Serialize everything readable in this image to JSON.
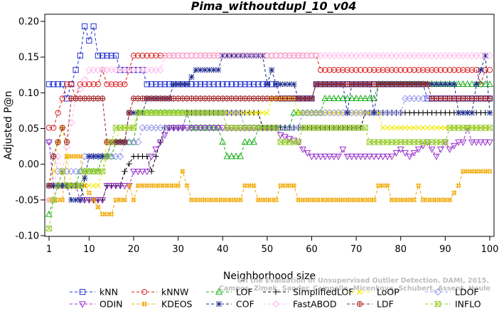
{
  "chart_data": {
    "type": "line",
    "title": "Pima_withoutdupl_10_v04",
    "xlabel": "Neighborhood size",
    "ylabel": "Adjusted P@n",
    "xlim": [
      1,
      100
    ],
    "ylim": [
      -0.1,
      0.2
    ],
    "x_ticks": [
      1,
      10,
      20,
      30,
      40,
      50,
      60,
      70,
      80,
      90,
      100
    ],
    "y_ticks": [
      -0.1,
      -0.05,
      0.0,
      0.05,
      0.1,
      0.15,
      0.2
    ],
    "y_tick_labels": [
      "-0.10",
      "-0.05",
      "0.00",
      "0.05",
      "0.10",
      "0.15",
      "0.20"
    ],
    "grid": false,
    "legend_position": "bottom",
    "watermark": [
      "Campos, Zimek, Sander, Campello, Micenkova, Schubert, Assent, Houle",
      "On the Evaluation of Unsupervised Outlier Detection. DAMI, 2015."
    ],
    "series": [
      {
        "name": "kNN",
        "color": "#2233cc",
        "marker": "square",
        "knots": [
          [
            1,
            0.112
          ],
          [
            4,
            0.112
          ],
          [
            5,
            0.092
          ],
          [
            6,
            0.112
          ],
          [
            7,
            0.132
          ],
          [
            8,
            0.152
          ],
          [
            9,
            0.193
          ],
          [
            10,
            0.173
          ],
          [
            11,
            0.193
          ],
          [
            12,
            0.152
          ],
          [
            16,
            0.152
          ],
          [
            17,
            0.132
          ],
          [
            22,
            0.132
          ],
          [
            23,
            0.112
          ],
          [
            24,
            0.112
          ],
          [
            52,
            0.112
          ],
          [
            53,
            0.092
          ],
          [
            60,
            0.092
          ],
          [
            61,
            0.112
          ],
          [
            85,
            0.112
          ],
          [
            86,
            0.092
          ],
          [
            100,
            0.092
          ]
        ]
      },
      {
        "name": "kNNW",
        "color": "#d81e1e",
        "marker": "circle",
        "knots": [
          [
            1,
            0.051
          ],
          [
            2,
            0.051
          ],
          [
            3,
            0.072
          ],
          [
            4,
            0.092
          ],
          [
            5,
            0.112
          ],
          [
            6,
            0.112
          ],
          [
            7,
            0.092
          ],
          [
            8,
            0.112
          ],
          [
            12,
            0.112
          ],
          [
            13,
            0.132
          ],
          [
            14,
            0.112
          ],
          [
            18,
            0.112
          ],
          [
            19,
            0.132
          ],
          [
            20,
            0.152
          ],
          [
            61,
            0.152
          ],
          [
            62,
            0.132
          ],
          [
            97,
            0.132
          ],
          [
            98,
            0.112
          ],
          [
            99,
            0.132
          ],
          [
            100,
            0.132
          ]
        ]
      },
      {
        "name": "LOF",
        "color": "#1ab01a",
        "marker": "triangle-up",
        "knots": [
          [
            1,
            -0.07
          ],
          [
            2,
            -0.05
          ],
          [
            3,
            -0.03
          ],
          [
            7,
            -0.03
          ],
          [
            8,
            -0.01
          ],
          [
            12,
            -0.01
          ],
          [
            13,
            0.011
          ],
          [
            15,
            0.011
          ],
          [
            16,
            0.031
          ],
          [
            20,
            0.031
          ],
          [
            21,
            0.072
          ],
          [
            32,
            0.072
          ],
          [
            33,
            0.051
          ],
          [
            39,
            0.051
          ],
          [
            40,
            0.031
          ],
          [
            41,
            0.011
          ],
          [
            44,
            0.011
          ],
          [
            45,
            0.031
          ],
          [
            47,
            0.031
          ],
          [
            48,
            0.051
          ],
          [
            55,
            0.051
          ],
          [
            56,
            0.072
          ],
          [
            62,
            0.072
          ],
          [
            63,
            0.092
          ],
          [
            74,
            0.092
          ],
          [
            75,
            0.112
          ],
          [
            100,
            0.112
          ]
        ]
      },
      {
        "name": "SimplifiedLOF",
        "color": "#000000",
        "marker": "plus",
        "knots": [
          [
            1,
            -0.03
          ],
          [
            3,
            -0.03
          ],
          [
            4,
            -0.01
          ],
          [
            5,
            -0.03
          ],
          [
            8,
            -0.03
          ],
          [
            9,
            -0.05
          ],
          [
            13,
            -0.05
          ],
          [
            14,
            -0.03
          ],
          [
            17,
            -0.03
          ],
          [
            18,
            -0.01
          ],
          [
            20,
            0.011
          ],
          [
            23,
            0.011
          ],
          [
            24,
            -0.01
          ],
          [
            25,
            0.011
          ],
          [
            26,
            0.031
          ],
          [
            27,
            0.051
          ],
          [
            31,
            0.051
          ],
          [
            32,
            0.072
          ],
          [
            48,
            0.072
          ],
          [
            49,
            0.051
          ],
          [
            71,
            0.051
          ],
          [
            72,
            0.072
          ],
          [
            100,
            0.072
          ]
        ]
      },
      {
        "name": "LoOP",
        "color": "#f0e800",
        "marker": "cross",
        "knots": [
          [
            1,
            -0.03
          ],
          [
            2,
            -0.01
          ],
          [
            3,
            0.031
          ],
          [
            4,
            0.051
          ],
          [
            5,
            0.011
          ],
          [
            6,
            -0.03
          ],
          [
            12,
            -0.03
          ],
          [
            13,
            -0.01
          ],
          [
            14,
            0.031
          ],
          [
            16,
            0.031
          ],
          [
            17,
            0.051
          ],
          [
            20,
            0.051
          ],
          [
            21,
            0.072
          ],
          [
            50,
            0.072
          ],
          [
            51,
            0.092
          ],
          [
            56,
            0.092
          ],
          [
            57,
            0.072
          ],
          [
            75,
            0.072
          ],
          [
            76,
            0.051
          ],
          [
            100,
            0.051
          ]
        ]
      },
      {
        "name": "LDOF",
        "color": "#9999ee",
        "marker": "diamond",
        "knots": [
          [
            1,
            0.031
          ],
          [
            2,
            0.011
          ],
          [
            3,
            -0.01
          ],
          [
            8,
            -0.01
          ],
          [
            9,
            0.011
          ],
          [
            17,
            0.011
          ],
          [
            18,
            0.031
          ],
          [
            21,
            0.031
          ],
          [
            22,
            0.051
          ],
          [
            31,
            0.051
          ],
          [
            32,
            0.072
          ],
          [
            44,
            0.072
          ],
          [
            45,
            0.051
          ],
          [
            57,
            0.051
          ],
          [
            58,
            0.072
          ],
          [
            80,
            0.072
          ],
          [
            81,
            0.092
          ],
          [
            100,
            0.092
          ]
        ]
      },
      {
        "name": "ODIN",
        "color": "#9933cc",
        "marker": "triangle-down",
        "knots": [
          [
            1,
            0.031
          ],
          [
            2,
            -0.03
          ],
          [
            7,
            -0.03
          ],
          [
            8,
            -0.05
          ],
          [
            13,
            -0.05
          ],
          [
            14,
            -0.03
          ],
          [
            19,
            -0.03
          ],
          [
            20,
            -0.01
          ],
          [
            23,
            -0.01
          ],
          [
            24,
            0.011
          ],
          [
            26,
            0.031
          ],
          [
            28,
            0.051
          ],
          [
            52,
            0.051
          ],
          [
            53,
            0.041
          ],
          [
            57,
            0.031
          ],
          [
            58,
            0.021
          ],
          [
            60,
            0.011
          ],
          [
            66,
            0.011
          ],
          [
            67,
            0.021
          ],
          [
            68,
            0.011
          ],
          [
            78,
            0.011
          ],
          [
            80,
            0.021
          ],
          [
            82,
            0.011
          ],
          [
            84,
            0.021
          ],
          [
            86,
            0.031
          ],
          [
            88,
            0.011
          ],
          [
            90,
            0.031
          ],
          [
            91,
            0.021
          ],
          [
            93,
            0.031
          ],
          [
            94,
            0.031
          ],
          [
            95,
            0.051
          ],
          [
            96,
            0.031
          ],
          [
            100,
            0.031
          ]
        ]
      },
      {
        "name": "KDEOS",
        "color": "#f0a800",
        "marker": "hash",
        "knots": [
          [
            1,
            -0.05
          ],
          [
            4,
            -0.05
          ],
          [
            5,
            0.011
          ],
          [
            8,
            0.011
          ],
          [
            9,
            -0.03
          ],
          [
            11,
            -0.05
          ],
          [
            13,
            -0.07
          ],
          [
            15,
            -0.07
          ],
          [
            16,
            -0.05
          ],
          [
            18,
            -0.05
          ],
          [
            19,
            -0.03
          ],
          [
            20,
            -0.05
          ],
          [
            21,
            -0.03
          ],
          [
            30,
            -0.03
          ],
          [
            31,
            -0.01
          ],
          [
            32,
            -0.03
          ],
          [
            33,
            -0.05
          ],
          [
            44,
            -0.05
          ],
          [
            45,
            -0.03
          ],
          [
            47,
            -0.03
          ],
          [
            48,
            -0.05
          ],
          [
            52,
            -0.05
          ],
          [
            53,
            -0.03
          ],
          [
            56,
            -0.03
          ],
          [
            57,
            -0.05
          ],
          [
            74,
            -0.05
          ],
          [
            75,
            -0.03
          ],
          [
            77,
            -0.03
          ],
          [
            78,
            -0.05
          ],
          [
            83,
            -0.05
          ],
          [
            84,
            -0.03
          ],
          [
            85,
            -0.05
          ],
          [
            91,
            -0.05
          ],
          [
            93,
            -0.03
          ],
          [
            94,
            -0.01
          ],
          [
            99,
            -0.01
          ],
          [
            100,
            -0.01
          ]
        ]
      },
      {
        "name": "COF",
        "color": "#1a2a8a",
        "marker": "asterisk",
        "knots": [
          [
            1,
            -0.03
          ],
          [
            5,
            -0.03
          ],
          [
            6,
            -0.05
          ],
          [
            8,
            -0.05
          ],
          [
            10,
            0.011
          ],
          [
            14,
            0.011
          ],
          [
            15,
            0.031
          ],
          [
            18,
            0.031
          ],
          [
            19,
            0.072
          ],
          [
            22,
            0.072
          ],
          [
            23,
            0.092
          ],
          [
            28,
            0.092
          ],
          [
            29,
            0.112
          ],
          [
            32,
            0.112
          ],
          [
            34,
            0.132
          ],
          [
            39,
            0.132
          ],
          [
            40,
            0.152
          ],
          [
            49,
            0.152
          ],
          [
            50,
            0.112
          ],
          [
            51,
            0.132
          ],
          [
            52,
            0.112
          ],
          [
            56,
            0.112
          ],
          [
            57,
            0.092
          ],
          [
            60,
            0.092
          ],
          [
            61,
            0.112
          ],
          [
            67,
            0.112
          ],
          [
            68,
            0.072
          ],
          [
            69,
            0.112
          ],
          [
            73,
            0.112
          ],
          [
            74,
            0.072
          ],
          [
            75,
            0.112
          ],
          [
            92,
            0.112
          ],
          [
            93,
            0.072
          ],
          [
            96,
            0.072
          ],
          [
            97,
            0.112
          ],
          [
            99,
            0.152
          ],
          [
            100,
            0.072
          ]
        ]
      },
      {
        "name": "FastABOD",
        "color": "#ffbbee",
        "marker": "diamond",
        "knots": [
          [
            1,
            -0.05
          ],
          [
            2,
            -0.05
          ],
          [
            3,
            0.011
          ],
          [
            4,
            -0.01
          ],
          [
            7,
            0.092
          ],
          [
            10,
            0.132
          ],
          [
            26,
            0.132
          ],
          [
            27,
            0.152
          ],
          [
            100,
            0.152
          ]
        ]
      },
      {
        "name": "LDF",
        "color": "#a02020",
        "marker": "circle-plus",
        "knots": [
          [
            1,
            -0.03
          ],
          [
            2,
            0.011
          ],
          [
            3,
            0.031
          ],
          [
            4,
            0.051
          ],
          [
            5,
            0.031
          ],
          [
            6,
            0.092
          ],
          [
            13,
            0.092
          ],
          [
            14,
            0.031
          ],
          [
            18,
            0.031
          ],
          [
            19,
            0.072
          ],
          [
            20,
            0.092
          ],
          [
            60,
            0.092
          ],
          [
            61,
            0.112
          ],
          [
            86,
            0.112
          ],
          [
            87,
            0.092
          ],
          [
            100,
            0.092
          ]
        ]
      },
      {
        "name": "INFLO",
        "color": "#99cc33",
        "marker": "square-x",
        "knots": [
          [
            1,
            -0.09
          ],
          [
            2,
            -0.05
          ],
          [
            3,
            -0.03
          ],
          [
            4,
            -0.01
          ],
          [
            5,
            -0.03
          ],
          [
            8,
            -0.03
          ],
          [
            9,
            -0.01
          ],
          [
            13,
            -0.01
          ],
          [
            14,
            0.011
          ],
          [
            15,
            0.031
          ],
          [
            16,
            0.051
          ],
          [
            20,
            0.051
          ],
          [
            21,
            0.072
          ],
          [
            40,
            0.072
          ],
          [
            41,
            0.051
          ],
          [
            52,
            0.051
          ],
          [
            53,
            0.031
          ],
          [
            57,
            0.031
          ],
          [
            58,
            0.051
          ],
          [
            72,
            0.051
          ],
          [
            73,
            0.031
          ],
          [
            90,
            0.031
          ],
          [
            91,
            0.051
          ],
          [
            100,
            0.051
          ]
        ]
      }
    ]
  }
}
